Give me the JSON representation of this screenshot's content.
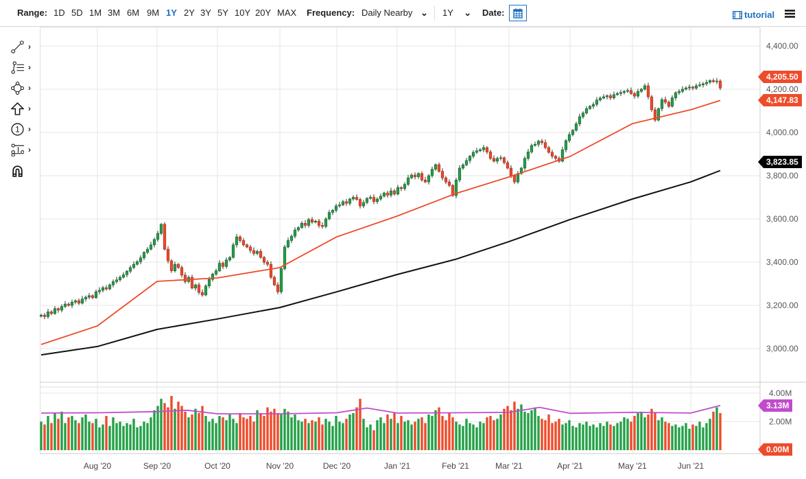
{
  "toolbar": {
    "range_label": "Range:",
    "ranges": [
      "1D",
      "5D",
      "1M",
      "3M",
      "6M",
      "9M",
      "1Y",
      "2Y",
      "3Y",
      "5Y",
      "10Y",
      "20Y",
      "MAX"
    ],
    "active_range": "1Y",
    "frequency_label": "Frequency:",
    "frequency_value": "Daily Nearby",
    "period_value": "1Y",
    "date_label": "Date:",
    "tutorial_label": "tutorial"
  },
  "left_tools": [
    {
      "icon": "line-tool-icon"
    },
    {
      "icon": "fibonacci-tool-icon"
    },
    {
      "icon": "shape-tool-icon"
    },
    {
      "icon": "arrow-up-icon"
    },
    {
      "icon": "number-marker-icon"
    },
    {
      "icon": "measure-tool-icon"
    },
    {
      "icon": "magnet-icon"
    }
  ],
  "colors": {
    "up": "#23a047",
    "down": "#ee4b2b",
    "ma50": "#ee4b2b",
    "ma200": "#111111",
    "volume_avg": "#c04ccc",
    "accent": "#1a6fc0"
  },
  "chart_data": {
    "type": "candlestick",
    "price_axis": {
      "ticks": [
        "4,400.00",
        "4,200.00",
        "4,000.00",
        "3,800.00",
        "3,600.00",
        "3,400.00",
        "3,200.00",
        "3,000.00"
      ],
      "tick_values": [
        4400,
        4200,
        4000,
        3800,
        3600,
        3400,
        3200,
        3000
      ],
      "range": [
        2900,
        4480
      ]
    },
    "volume_axis": {
      "ticks": [
        "4.00M",
        "2.00M"
      ],
      "tick_values": [
        4,
        2
      ],
      "range": [
        0,
        4.2
      ]
    },
    "x_ticks": [
      "Aug '20",
      "Sep '20",
      "Oct '20",
      "Nov '20",
      "Dec '20",
      "Jan '21",
      "Feb '21",
      "Mar '21",
      "Apr '21",
      "May '21",
      "Jun '21"
    ],
    "grid": true,
    "closes": [
      3155,
      3148,
      3170,
      3162,
      3185,
      3178,
      3195,
      3206,
      3200,
      3215,
      3222,
      3210,
      3230,
      3238,
      3245,
      3236,
      3263,
      3270,
      3282,
      3276,
      3295,
      3310,
      3318,
      3330,
      3342,
      3358,
      3375,
      3390,
      3402,
      3420,
      3445,
      3460,
      3480,
      3505,
      3533,
      3575,
      3460,
      3406,
      3360,
      3390,
      3375,
      3340,
      3310,
      3330,
      3280,
      3295,
      3260,
      3248,
      3290,
      3320,
      3345,
      3360,
      3395,
      3380,
      3410,
      3422,
      3480,
      3517,
      3500,
      3480,
      3470,
      3454,
      3440,
      3450,
      3422,
      3400,
      3390,
      3330,
      3295,
      3263,
      3370,
      3470,
      3500,
      3520,
      3549,
      3560,
      3580,
      3570,
      3597,
      3585,
      3590,
      3570,
      3565,
      3600,
      3630,
      3640,
      3660,
      3665,
      3680,
      3672,
      3692,
      3700,
      3690,
      3660,
      3676,
      3695,
      3700,
      3680,
      3692,
      3705,
      3720,
      3710,
      3730,
      3715,
      3745,
      3740,
      3760,
      3790,
      3803,
      3795,
      3810,
      3780,
      3771,
      3800,
      3830,
      3851,
      3820,
      3790,
      3771,
      3755,
      3708,
      3780,
      3835,
      3850,
      3870,
      3890,
      3908,
      3915,
      3920,
      3930,
      3910,
      3880,
      3867,
      3880,
      3883,
      3860,
      3835,
      3800,
      3771,
      3810,
      3835,
      3880,
      3910,
      3940,
      3945,
      3960,
      3953,
      3930,
      3908,
      3890,
      3880,
      3867,
      3920,
      3962,
      3990,
      4010,
      4040,
      4073,
      4090,
      4110,
      4121,
      4130,
      4150,
      4159,
      4165,
      4170,
      4160,
      4175,
      4180,
      4185,
      4190,
      4194,
      4180,
      4168,
      4190,
      4200,
      4216,
      4165,
      4105,
      4057,
      4110,
      4152,
      4140,
      4121,
      4160,
      4184,
      4190,
      4200,
      4206,
      4210,
      4205,
      4216,
      4220,
      4225,
      4232,
      4240,
      4235,
      4238,
      4205.5
    ],
    "volumes_millions": [
      2.0,
      1.8,
      2.4,
      1.9,
      2.6,
      2.2,
      2.7,
      1.9,
      2.3,
      2.4,
      2.1,
      1.9,
      2.3,
      2.5,
      2.0,
      1.9,
      2.2,
      1.6,
      1.8,
      2.4,
      1.7,
      2.3,
      1.9,
      2.0,
      1.7,
      1.9,
      1.8,
      2.2,
      1.6,
      1.7,
      2.0,
      1.9,
      2.3,
      2.8,
      3.1,
      3.6,
      3.3,
      3.0,
      3.8,
      2.9,
      3.4,
      3.1,
      2.7,
      2.3,
      2.5,
      2.9,
      2.6,
      3.1,
      2.4,
      2.0,
      2.2,
      1.9,
      2.4,
      2.3,
      2.1,
      2.5,
      2.2,
      1.9,
      2.6,
      2.3,
      2.2,
      2.4,
      2.0,
      2.8,
      2.6,
      2.4,
      3.0,
      2.7,
      2.9,
      2.6,
      2.5,
      2.9,
      2.7,
      2.3,
      2.5,
      2.1,
      2.0,
      2.2,
      1.9,
      2.1,
      2.0,
      2.3,
      1.8,
      2.2,
      2.0,
      1.7,
      2.4,
      2.0,
      1.9,
      2.2,
      2.5,
      2.6,
      3.0,
      3.6,
      2.2,
      1.6,
      1.8,
      1.4,
      2.1,
      2.3,
      1.9,
      2.5,
      2.2,
      2.6,
      1.9,
      2.4,
      2.0,
      2.1,
      1.8,
      2.0,
      2.2,
      2.3,
      1.9,
      2.5,
      2.4,
      2.8,
      3.0,
      2.4,
      2.1,
      2.6,
      2.3,
      2.0,
      1.8,
      1.7,
      2.2,
      1.9,
      1.8,
      1.6,
      2.0,
      1.9,
      2.3,
      2.4,
      2.1,
      2.2,
      2.5,
      2.9,
      3.1,
      2.8,
      3.4,
      2.9,
      3.2,
      2.7,
      2.6,
      2.8,
      3.0,
      2.4,
      2.2,
      2.1,
      2.5,
      1.9,
      2.0,
      2.2,
      1.8,
      1.9,
      2.1,
      1.7,
      1.6,
      1.9,
      1.8,
      2.0,
      1.7,
      1.8,
      1.6,
      1.9,
      1.7,
      2.0,
      1.8,
      1.7,
      1.9,
      2.0,
      2.3,
      2.2,
      2.0,
      2.4,
      2.6,
      2.7,
      2.3,
      2.5,
      2.9,
      2.6,
      2.1,
      2.3,
      2.0,
      1.9,
      1.7,
      1.8,
      1.6,
      1.7,
      1.9,
      1.5,
      1.8,
      1.7,
      2.0,
      1.6,
      1.9,
      2.2,
      2.7,
      3.0,
      2.6
    ],
    "ma50": [
      {
        "at": "start",
        "v": 3019
      },
      {
        "at": "Aug '20",
        "v": 3105
      },
      {
        "at": "Sep '20",
        "v": 3311
      },
      {
        "at": "Oct '20",
        "v": 3327
      },
      {
        "at": "Nov '20",
        "v": 3375
      },
      {
        "at": "Dec '20",
        "v": 3517
      },
      {
        "at": "Jan '21",
        "v": 3613
      },
      {
        "at": "Feb '21",
        "v": 3717
      },
      {
        "at": "Mar '21",
        "v": 3794
      },
      {
        "at": "Apr '21",
        "v": 3889
      },
      {
        "at": "May '21",
        "v": 4041
      },
      {
        "at": "Jun '21",
        "v": 4105
      },
      {
        "at": "end",
        "v": 4147.83
      }
    ],
    "ma200": [
      {
        "at": "start",
        "v": 2971
      },
      {
        "at": "Aug '20",
        "v": 3010
      },
      {
        "at": "Sep '20",
        "v": 3089
      },
      {
        "at": "Oct '20",
        "v": 3137
      },
      {
        "at": "Nov '20",
        "v": 3190
      },
      {
        "at": "Dec '20",
        "v": 3263
      },
      {
        "at": "Jan '21",
        "v": 3343
      },
      {
        "at": "Feb '21",
        "v": 3413
      },
      {
        "at": "Mar '21",
        "v": 3495
      },
      {
        "at": "Apr '21",
        "v": 3597
      },
      {
        "at": "May '21",
        "v": 3692
      },
      {
        "at": "Jun '21",
        "v": 3771
      },
      {
        "at": "end",
        "v": 3823.85
      }
    ],
    "volume_avg": [
      {
        "at": "start",
        "v": 2.6
      },
      {
        "at": "Aug '20",
        "v": 2.62
      },
      {
        "at": "Sep '20",
        "v": 2.7
      },
      {
        "at": "mid Sep '20",
        "v": 2.8
      },
      {
        "at": "Oct '20",
        "v": 2.55
      },
      {
        "at": "Nov '20",
        "v": 2.55
      },
      {
        "at": "Dec '20",
        "v": 2.62
      },
      {
        "at": "mid Dec '20",
        "v": 2.95
      },
      {
        "at": "Jan '21",
        "v": 2.6
      },
      {
        "at": "Feb '21",
        "v": 2.62
      },
      {
        "at": "Mar '21",
        "v": 2.65
      },
      {
        "at": "mid Mar '21",
        "v": 3.0
      },
      {
        "at": "Apr '21",
        "v": 2.58
      },
      {
        "at": "May '21",
        "v": 2.65
      },
      {
        "at": "Jun '21",
        "v": 2.6
      },
      {
        "at": "end",
        "v": 3.13
      }
    ],
    "last_labels": {
      "close": "4,205.50",
      "ma50": "4,147.83",
      "ma200": "3,823.85",
      "volume_avg": "3.13M",
      "volume_zero": "0.00M"
    }
  }
}
